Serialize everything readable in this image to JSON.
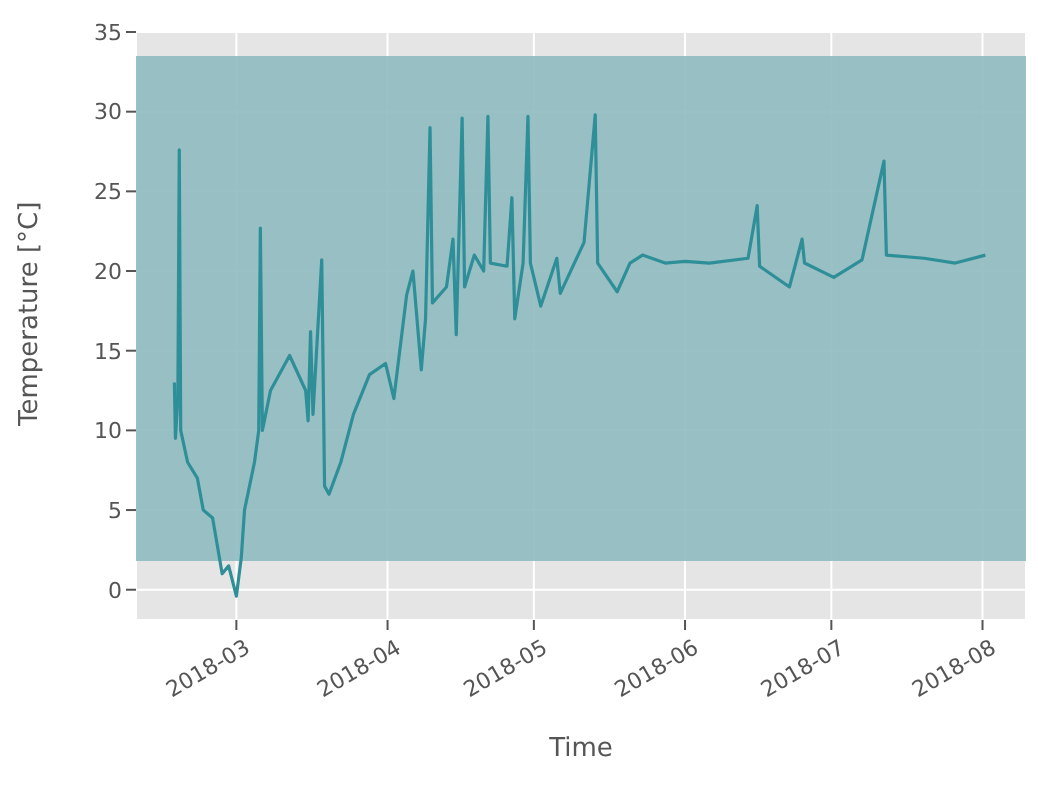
{
  "chart_data": {
    "type": "line",
    "xlabel": "Time",
    "ylabel": "Temperature [°C]",
    "x": [
      "2018-02-16T07:00",
      "2018-02-16T12:00",
      "2018-02-17T00:00",
      "2018-02-17T07:00",
      "2018-02-17T14:00",
      "2018-02-19",
      "2018-02-21",
      "2018-02-22T05:00",
      "2018-02-24T03:00",
      "2018-02-26T02:00",
      "2018-02-27T10:00",
      "2018-03-01",
      "2018-03-02",
      "2018-03-02T16:00",
      "2018-03-04T17:00",
      "2018-03-05T14:00",
      "2018-03-05T22:00",
      "2018-03-06T08:00",
      "2018-03-08",
      "2018-03-11T22:00",
      "2018-03-15T05:00",
      "2018-03-15T17:00",
      "2018-03-16T05:00",
      "2018-03-16T17:00",
      "2018-03-18T12:00",
      "2018-03-19T02:00",
      "2018-03-20",
      "2018-03-22T10:00",
      "2018-03-25",
      "2018-03-28T07:00",
      "2018-03-31T14:00",
      "2018-04-02T07:00",
      "2018-04-04T22:00",
      "2018-04-06T05:00",
      "2018-04-07T22:00",
      "2018-04-08T19:00",
      "2018-04-09T17:00",
      "2018-04-10T05:00",
      "2018-04-13T02:00",
      "2018-04-14T10:00",
      "2018-04-15T02:00",
      "2018-04-16T07:00",
      "2018-04-16T19:00",
      "2018-04-18T19:00",
      "2018-04-20T17:00",
      "2018-04-21T14:00",
      "2018-04-22T02:00",
      "2018-04-25T12:00",
      "2018-04-26T12:00",
      "2018-04-27T02:00",
      "2018-04-28T19:00",
      "2018-04-29T19:00",
      "2018-04-30T07:00",
      "2018-05-02T10:00",
      "2018-05-05T17:00",
      "2018-05-06T10:00",
      "2018-05-11T07:00",
      "2018-05-13T14:00",
      "2018-05-14T02:00",
      "2018-05-18T02:00",
      "2018-05-20T17:00",
      "2018-05-23T07:00",
      "2018-05-27T22:00",
      "2018-06-01",
      "2018-06-06",
      "2018-06-13T22:00",
      "2018-06-15T19:00",
      "2018-06-16T07:00",
      "2018-06-22T10:00",
      "2018-06-25",
      "2018-06-25T12:00",
      "2018-07-01T12:00",
      "2018-07-07T07:00",
      "2018-07-11T19:00",
      "2018-07-12T07:00",
      "2018-07-20",
      "2018-07-26T10:00",
      "2018-08-01T14:00"
    ],
    "series": [
      {
        "color": "#2e8f99",
        "values": [
          13.0,
          9.5,
          12,
          27.6,
          10,
          8,
          7,
          5,
          4.5,
          1,
          1.5,
          -0.4,
          2,
          5,
          8,
          10,
          22.7,
          10,
          12.5,
          14.7,
          12.5,
          10.6,
          16.2,
          11,
          20.7,
          6.5,
          6,
          8,
          11,
          13.5,
          14.2,
          12,
          18.5,
          20,
          13.8,
          17,
          29,
          18,
          19,
          22,
          16,
          29.6,
          19,
          21,
          20,
          29.7,
          20.5,
          20.3,
          24.6,
          17,
          20.5,
          29.7,
          20.5,
          17.8,
          20.8,
          18.6,
          21.8,
          29.8,
          20.5,
          18.7,
          20.5,
          21,
          20.5,
          20.6,
          20.5,
          20.8,
          24.1,
          20.3,
          19,
          22,
          20.5,
          19.6,
          20.7,
          26.9,
          21,
          20.8,
          20.5,
          21
        ]
      }
    ],
    "xlim": [
      "2018-02-08T10:00",
      "2018-08-09T22:00"
    ],
    "xticks": [
      "2018-03",
      "2018-04",
      "2018-05",
      "2018-06",
      "2018-07",
      "2018-08"
    ],
    "ylim": [
      -1.9,
      35
    ],
    "yticks": [
      0,
      5,
      10,
      15,
      20,
      25,
      30,
      35
    ],
    "bands": [
      {
        "axis": "y",
        "from": 1.8,
        "to": 33.5,
        "color": "#8fbac0"
      }
    ],
    "grid": true
  }
}
